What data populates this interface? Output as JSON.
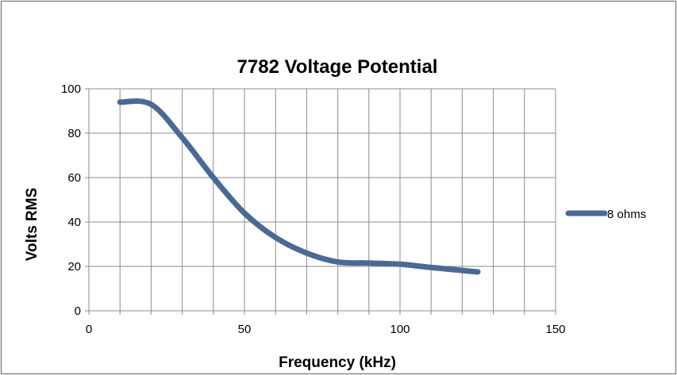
{
  "chart_data": {
    "type": "line",
    "title": "7782 Voltage Potential",
    "xlabel": "Frequency (kHz)",
    "ylabel": "Volts RMS",
    "xlim": [
      0,
      150
    ],
    "ylim": [
      0,
      100
    ],
    "x_ticks": [
      0,
      50,
      100,
      150
    ],
    "y_ticks": [
      0,
      20,
      40,
      60,
      80,
      100
    ],
    "x_minor_step": 10,
    "grid": true,
    "legend_position": "right",
    "series": [
      {
        "name": "8 ohms",
        "color": "#4a6a96",
        "smooth": true,
        "x": [
          10,
          20,
          30,
          40,
          50,
          60,
          70,
          80,
          90,
          100,
          110,
          125
        ],
        "y": [
          94,
          93,
          78,
          60,
          44,
          33,
          26,
          22,
          21.5,
          21,
          19.5,
          17.5
        ]
      }
    ]
  }
}
